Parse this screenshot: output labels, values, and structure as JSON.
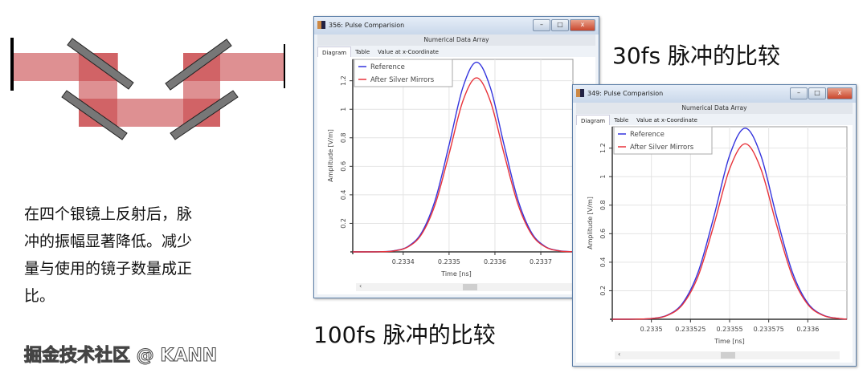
{
  "description": {
    "lines": [
      "在四个银镜上反射后，脉",
      "冲的振幅显著降低。减少",
      "量与使用的镜子数量成正",
      "比。"
    ]
  },
  "captions": {
    "fs30": "30fs 脉冲的比较",
    "fs100": "100fs 脉冲的比较"
  },
  "watermark": "掘金技术社区 @ KANN",
  "colors": {
    "reference": "#3333dd",
    "after_silver_mirrors": "#e8333a",
    "beam": "#c8464a",
    "mirror": "#777777"
  },
  "windows": [
    {
      "title": "356: Pulse Comparision",
      "subtitle": "Numerical Data Array",
      "tabs": [
        "Diagram",
        "Table",
        "Value at x-Coordinate"
      ],
      "active_tab": "Diagram",
      "scroll_left": "‹",
      "buttons": {
        "minimize": "–",
        "maximize": "□",
        "close": "x"
      }
    },
    {
      "title": "349: Pulse Comparision",
      "subtitle": "Numerical Data Array",
      "tabs": [
        "Diagram",
        "Table",
        "Value at x-Coordinate"
      ],
      "active_tab": "Diagram",
      "scroll_left": "‹",
      "buttons": {
        "minimize": "–",
        "maximize": "□",
        "close": "x"
      }
    }
  ],
  "chart_data": [
    {
      "type": "line",
      "title": "",
      "xlabel": "Time [ns]",
      "ylabel": "Amplitude [V/m]",
      "xlim": [
        0.23329,
        0.23377
      ],
      "ylim": [
        0,
        1.35
      ],
      "xticks": [
        0.2334,
        0.2335,
        0.2336,
        0.2337
      ],
      "xtick_labels": [
        "0.2334",
        "0.2335",
        "0.2336",
        "0.2337"
      ],
      "yticks": [
        0.2,
        0.4,
        0.6,
        0.8,
        1,
        1.2
      ],
      "ytick_labels": [
        "0.2",
        "0.4",
        "0.6",
        "0.8",
        "1",
        "1.2"
      ],
      "grid": true,
      "legend": "top-left",
      "x": [
        0.23329,
        0.23335,
        0.23338,
        0.23341,
        0.23344,
        0.23347,
        0.2335,
        0.23353,
        0.23356,
        0.23359,
        0.23362,
        0.23365,
        0.23368,
        0.23371,
        0.23374,
        0.23377
      ],
      "series": [
        {
          "name": "Reference",
          "color": "#3333dd",
          "values": [
            0,
            0.001,
            0.008,
            0.037,
            0.134,
            0.366,
            0.749,
            1.152,
            1.33,
            1.152,
            0.749,
            0.366,
            0.134,
            0.037,
            0.008,
            0.001
          ]
        },
        {
          "name": "After Silver Mirrors",
          "color": "#e8333a",
          "values": [
            0,
            0.001,
            0.007,
            0.034,
            0.123,
            0.336,
            0.687,
            1.057,
            1.22,
            1.057,
            0.687,
            0.336,
            0.123,
            0.034,
            0.007,
            0.001
          ]
        }
      ]
    },
    {
      "type": "line",
      "title": "",
      "xlabel": "Time [ns]",
      "ylabel": "Amplitude [V/m]",
      "xlim": [
        0.233475,
        0.233625
      ],
      "ylim": [
        0,
        1.35
      ],
      "xticks": [
        0.2335,
        0.233525,
        0.23355,
        0.233575,
        0.2336
      ],
      "xtick_labels": [
        "0.2335",
        "0.233525",
        "0.23355",
        "0.233575",
        "0.2336"
      ],
      "yticks": [
        0.2,
        0.4,
        0.6,
        0.8,
        1,
        1.2
      ],
      "ytick_labels": [
        "0.2",
        "0.4",
        "0.6",
        "0.8",
        "1",
        "1.2"
      ],
      "grid": true,
      "legend": "top-left",
      "x": [
        0.233475,
        0.23349,
        0.2335,
        0.23351,
        0.23352,
        0.23353,
        0.23354,
        0.23355,
        0.23356,
        0.23357,
        0.23358,
        0.23359,
        0.2336,
        0.23361,
        0.23362,
        0.233625
      ],
      "series": [
        {
          "name": "Reference",
          "color": "#3333dd",
          "values": [
            0,
            0.001,
            0.005,
            0.028,
            0.113,
            0.334,
            0.722,
            1.148,
            1.34,
            1.148,
            0.722,
            0.334,
            0.113,
            0.028,
            0.005,
            0.001
          ]
        },
        {
          "name": "After Silver Mirrors",
          "color": "#e8333a",
          "values": [
            0,
            0.001,
            0.005,
            0.026,
            0.104,
            0.306,
            0.663,
            1.054,
            1.23,
            1.054,
            0.663,
            0.306,
            0.104,
            0.026,
            0.005,
            0.001
          ]
        }
      ]
    }
  ]
}
